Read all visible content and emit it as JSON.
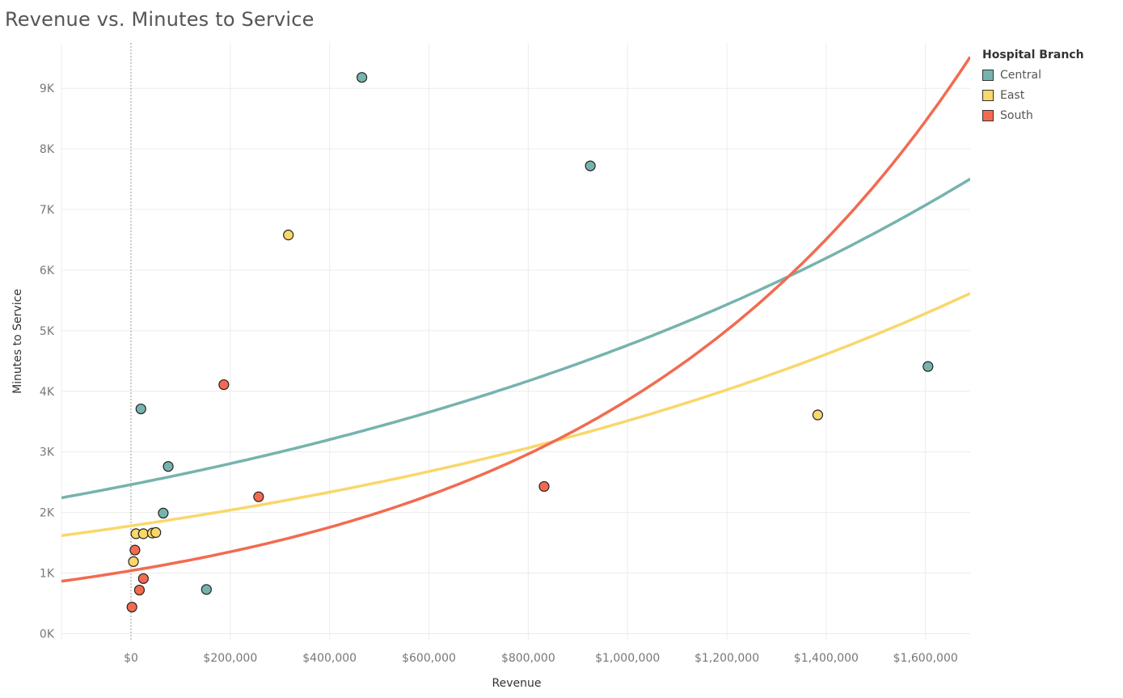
{
  "chart_data": {
    "type": "scatter",
    "title": "Revenue vs. Minutes to Service",
    "xlabel": "Revenue",
    "ylabel": "Minutes to Service",
    "xlim": [
      -140000,
      1690000
    ],
    "ylim": [
      -100,
      9750
    ],
    "x_ticks": [
      0,
      200000,
      400000,
      600000,
      800000,
      1000000,
      1200000,
      1400000,
      1600000
    ],
    "x_tick_labels": [
      "$0",
      "$200,000",
      "$400,000",
      "$600,000",
      "$800,000",
      "$1,000,000",
      "$1,200,000",
      "$1,400,000",
      "$1,600,000"
    ],
    "y_ticks": [
      0,
      1000,
      2000,
      3000,
      4000,
      5000,
      6000,
      7000,
      8000,
      9000
    ],
    "y_tick_labels": [
      "0K",
      "1K",
      "2K",
      "3K",
      "4K",
      "5K",
      "6K",
      "7K",
      "8K",
      "9K"
    ],
    "grid": true,
    "zero_line": "x=0 dotted",
    "legend": {
      "title": "Hospital Branch",
      "placement": "top-right"
    },
    "series": [
      {
        "name": "Central",
        "color": "#76B3AE",
        "points": [
          [
            465000,
            9180
          ],
          [
            925000,
            7720
          ],
          [
            1605000,
            4410
          ],
          [
            20000,
            3710
          ],
          [
            75000,
            2760
          ],
          [
            65000,
            1990
          ],
          [
            152000,
            730
          ]
        ],
        "trend": {
          "type": "exponential",
          "a": 2460,
          "b": 6.6e-07
        }
      },
      {
        "name": "East",
        "color": "#F9D76B",
        "points": [
          [
            317000,
            6580
          ],
          [
            1383000,
            3610
          ],
          [
            10000,
            1650
          ],
          [
            25000,
            1650
          ],
          [
            43000,
            1660
          ],
          [
            50000,
            1670
          ],
          [
            5000,
            1190
          ]
        ],
        "trend": {
          "type": "exponential",
          "a": 1780,
          "b": 6.8e-07
        }
      },
      {
        "name": "South",
        "color": "#F26B50",
        "points": [
          [
            187000,
            4110
          ],
          [
            257000,
            2260
          ],
          [
            832000,
            2430
          ],
          [
            8000,
            1380
          ],
          [
            25000,
            910
          ],
          [
            17000,
            720
          ],
          [
            2000,
            440
          ]
        ],
        "trend": {
          "type": "exponential",
          "a": 1040,
          "b": 1.31e-06
        }
      }
    ]
  }
}
